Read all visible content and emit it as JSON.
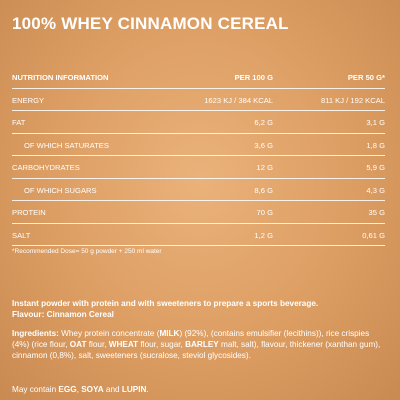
{
  "title": "100% WHEY CINNAMON CEREAL",
  "table": {
    "header": [
      "NUTRITION INFORMATION",
      "PER 100 G",
      "PER 50 G*"
    ],
    "rows": [
      [
        "ENERGY",
        "1623 KJ / 384 KCAL",
        "811 KJ / 192 KCAL"
      ],
      [
        "FAT",
        "6,2 G",
        "3,1 G"
      ],
      [
        "OF WHICH SATURATES",
        "3,6 G",
        "1,8 G"
      ],
      [
        "CARBOHYDRATES",
        "12 G",
        "5,9 G"
      ],
      [
        "OF WHICH SUGARS",
        "8,6 G",
        "4,3 G"
      ],
      [
        "PROTEIN",
        "70 G",
        "35 G"
      ],
      [
        "SALT",
        "1,2 G",
        "0,61 G"
      ]
    ],
    "sub_rows": [
      2,
      4
    ]
  },
  "footnote": "*Recommended Dose= 50 g powder + 250 ml water",
  "description": [
    "Instant powder with protein and with sweeteners to prepare a sports beverage.",
    "Flavour: Cinnamon Cereal"
  ],
  "ingredients": [
    {
      "text": "Ingredients:",
      "bold": true
    },
    {
      "text": " Whey protein concentrate (",
      "bold": false
    },
    {
      "text": "MILK",
      "bold": true
    },
    {
      "text": ") (92%), (contains emulsifier (lecithins)), rice crispies (4%) (rice flour, ",
      "bold": false
    },
    {
      "text": "OAT",
      "bold": true
    },
    {
      "text": " flour, ",
      "bold": false
    },
    {
      "text": "WHEAT",
      "bold": true
    },
    {
      "text": " flour, sugar, ",
      "bold": false
    },
    {
      "text": "BARLEY",
      "bold": true
    },
    {
      "text": " malt, salt), flavour, thickener (xanthan gum), cinnamon (0,8%), salt, sweeteners (sucralose, steviol glycosides).",
      "bold": false
    }
  ],
  "allergens": [
    {
      "text": "May contain ",
      "bold": false
    },
    {
      "text": "EGG",
      "bold": true
    },
    {
      "text": ", ",
      "bold": false
    },
    {
      "text": "SOYA",
      "bold": true
    },
    {
      "text": " and ",
      "bold": false
    },
    {
      "text": "LUPIN",
      "bold": true
    },
    {
      "text": ".",
      "bold": false
    }
  ]
}
